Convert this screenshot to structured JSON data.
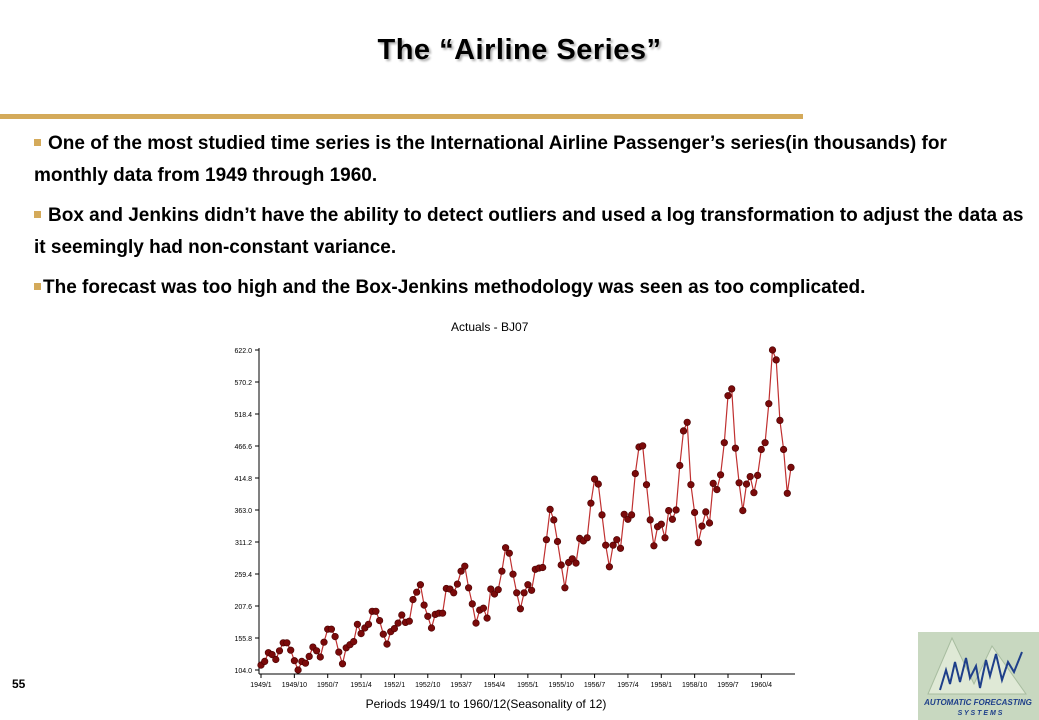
{
  "slide": {
    "title": "The “Airline  Series”",
    "page_number": "55",
    "bullets": [
      "One of the most studied time series is the International Airline Passenger’s series(in thousands) for monthly data from 1949 through 1960.",
      "Box and Jenkins didn’t have the ability to detect outliers and used a log transformation to adjust the data as it seemingly had non-constant variance.",
      "The forecast was too high and the Box-Jenkins methodology was seen as too complicated."
    ],
    "logo_text_line1": "AUTOMATIC FORECASTING",
    "logo_text_line2": "S Y S T E M S"
  },
  "colors": {
    "accent": "#d4aa5a",
    "series_line": "#c03030",
    "marker": "#7a0a0a"
  },
  "chart_data": {
    "type": "line",
    "title": "Actuals - BJ07",
    "xlabel": "Periods 1949/1 to 1960/12(Seasonality of 12)",
    "ylabel": "",
    "ylim": [
      104.0,
      622.0
    ],
    "yticks": [
      "622.0",
      "570.2",
      "518.4",
      "466.6",
      "414.8",
      "363.0",
      "311.2",
      "259.4",
      "207.6",
      "155.8",
      "104.0"
    ],
    "xticks": [
      "1949/1",
      "1949/10",
      "1950/7",
      "1951/4",
      "1952/1",
      "1952/10",
      "1953/7",
      "1954/4",
      "1955/1",
      "1955/10",
      "1956/7",
      "1957/4",
      "1958/1",
      "1958/10",
      "1959/7",
      "1960/4"
    ],
    "grid": false,
    "series": [
      {
        "name": "",
        "values": [
          112,
          118,
          132,
          129,
          121,
          135,
          148,
          148,
          136,
          119,
          104,
          118,
          115,
          126,
          141,
          135,
          125,
          149,
          170,
          170,
          158,
          133,
          114,
          140,
          145,
          150,
          178,
          163,
          172,
          178,
          199,
          199,
          184,
          162,
          146,
          166,
          171,
          180,
          193,
          181,
          183,
          218,
          230,
          242,
          209,
          191,
          172,
          194,
          196,
          196,
          236,
          235,
          229,
          243,
          264,
          272,
          237,
          211,
          180,
          201,
          204,
          188,
          235,
          227,
          234,
          264,
          302,
          293,
          259,
          229,
          203,
          229,
          242,
          233,
          267,
          269,
          270,
          315,
          364,
          347,
          312,
          274,
          237,
          278,
          284,
          277,
          317,
          313,
          318,
          374,
          413,
          405,
          355,
          306,
          271,
          306,
          315,
          301,
          356,
          348,
          355,
          422,
          465,
          467,
          404,
          347,
          305,
          336,
          340,
          318,
          362,
          348,
          363,
          435,
          491,
          505,
          404,
          359,
          310,
          337,
          360,
          342,
          406,
          396,
          420,
          472,
          548,
          559,
          463,
          407,
          362,
          405,
          417,
          391,
          419,
          461,
          472,
          535,
          622,
          606,
          508,
          461,
          390,
          432
        ]
      }
    ]
  }
}
